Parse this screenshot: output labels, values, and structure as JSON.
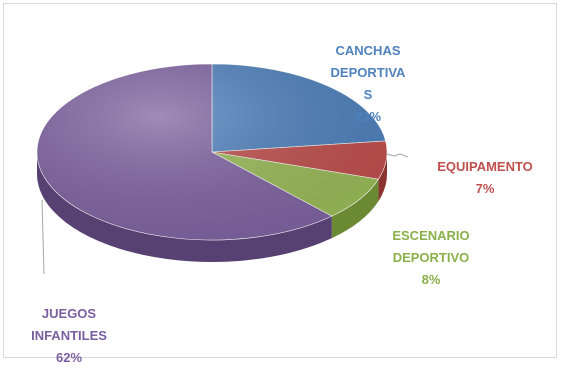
{
  "chart_data": {
    "type": "pie",
    "slices": [
      {
        "label": "CANCHAS\nDEPORTIVA\nS",
        "percent": "23%",
        "value": 23,
        "color": "#4f81bd",
        "side": "#37598a"
      },
      {
        "label": "EQUIPAMENTO",
        "percent": "7%",
        "value": 7,
        "color": "#c0504d",
        "side": "#8a3331"
      },
      {
        "label": "ESCENARIO\nDEPORTIVO",
        "percent": "8%",
        "value": 8,
        "color": "#9bbb59",
        "side": "#6b8a33"
      },
      {
        "label": "JUEGOS\nINFANTILES",
        "percent": "62%",
        "value": 62,
        "color": "#8064a2",
        "side": "#574173"
      }
    ]
  }
}
